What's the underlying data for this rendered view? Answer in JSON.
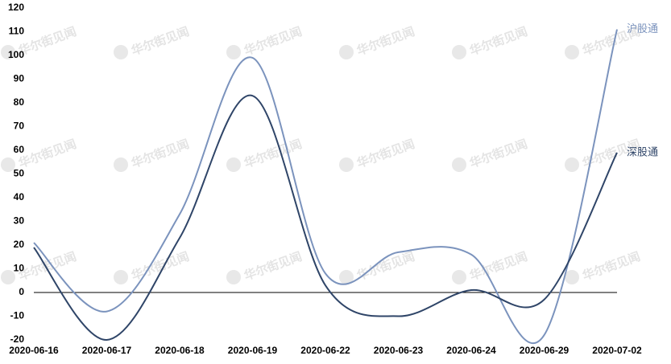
{
  "chart_data": {
    "type": "line",
    "watermark": "华尔街见闻",
    "categories": [
      "2020-06-16",
      "2020-06-17",
      "2020-06-18",
      "2020-06-19",
      "2020-06-22",
      "2020-06-23",
      "2020-06-24",
      "2020-06-29",
      "2020-07-02"
    ],
    "series": [
      {
        "name": "沪股通",
        "color": "#7b93bd",
        "values": [
          21,
          -8,
          33,
          99,
          8,
          17,
          16,
          -18,
          111
        ]
      },
      {
        "name": "深股通",
        "color": "#2f4568",
        "values": [
          19,
          -20,
          23,
          83,
          3,
          -10,
          1,
          -3,
          59
        ]
      }
    ],
    "ylim": [
      -20,
      120
    ],
    "yticks": [
      -20,
      -10,
      0,
      10,
      20,
      30,
      40,
      50,
      60,
      70,
      80,
      90,
      100,
      110,
      120
    ]
  }
}
